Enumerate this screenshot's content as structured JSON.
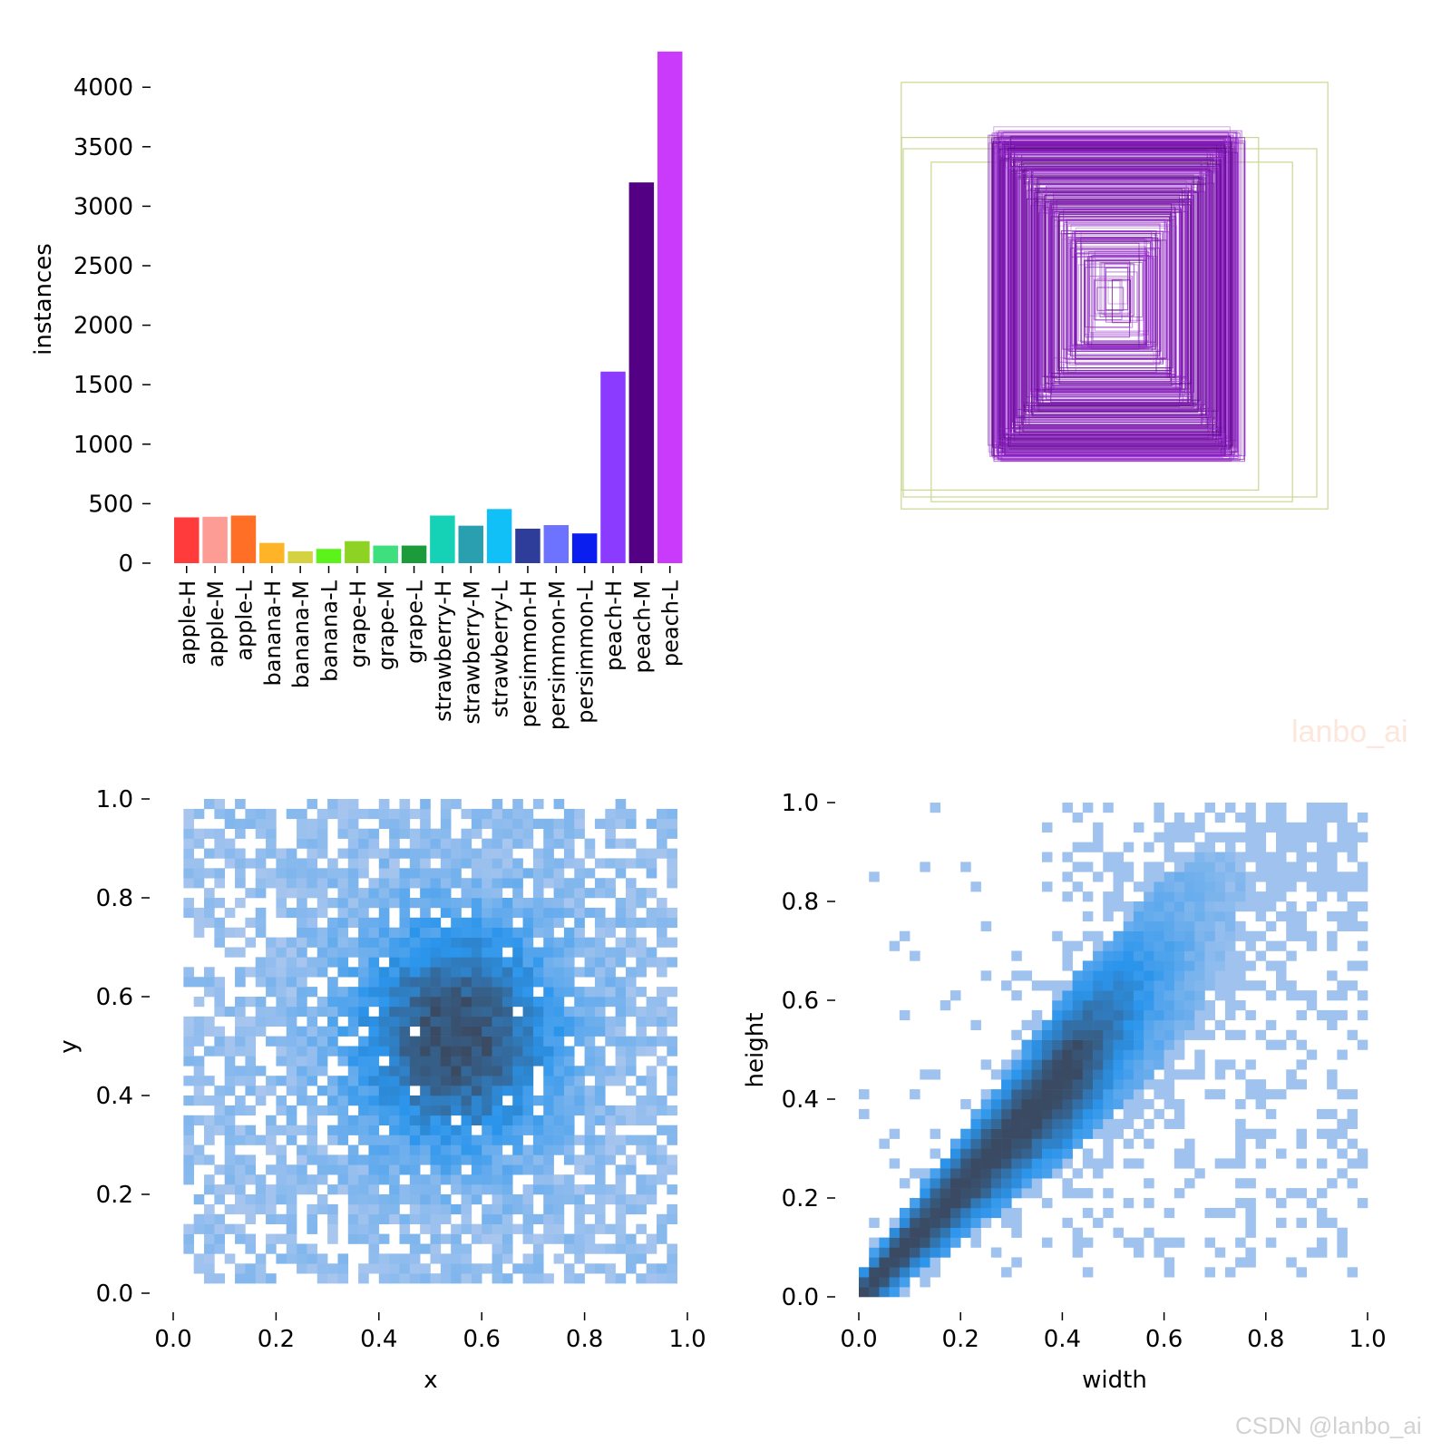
{
  "colors": {
    "axis": "#000000",
    "heat_light": "#a9c6ee",
    "heat_mid": "#2b95ec",
    "heat_dark": "#3a4a62",
    "box_outline_green": "#c8d890",
    "box_outline_purple": "#9a2cc8"
  },
  "watermarks": {
    "faint": "lanbo_ai",
    "footer": "CSDN @lanbo_ai"
  },
  "chart_data": [
    {
      "type": "bar",
      "title": "",
      "xlabel": "",
      "ylabel": "instances",
      "ylim": [
        0,
        4300
      ],
      "yticks": [
        0,
        500,
        1000,
        1500,
        2000,
        2500,
        3000,
        3500,
        4000
      ],
      "categories": [
        "apple-H",
        "apple-M",
        "apple-L",
        "banana-H",
        "banana-M",
        "banana-L",
        "grape-H",
        "grape-M",
        "grape-L",
        "strawberry-H",
        "strawberry-M",
        "strawberry-L",
        "persimmon-H",
        "persimmon-M",
        "persimmon-L",
        "peach-H",
        "peach-M",
        "peach-L"
      ],
      "values": [
        385,
        390,
        400,
        170,
        100,
        120,
        185,
        148,
        148,
        400,
        315,
        455,
        290,
        320,
        250,
        1610,
        3200,
        4300
      ],
      "colors": [
        "#ff3b3b",
        "#fd9c95",
        "#ff6f26",
        "#ffb326",
        "#d4d241",
        "#5cf31a",
        "#8ed323",
        "#3edf7e",
        "#1c9b3a",
        "#15d2b6",
        "#2a9fb0",
        "#12c0f8",
        "#2e3d9a",
        "#6d73ff",
        "#0a1ef0",
        "#8a3bff",
        "#540084",
        "#ca3afb"
      ]
    },
    {
      "type": "box-overlay",
      "title": "",
      "xlim": [
        0,
        1000
      ],
      "ylim": [
        0,
        1000
      ],
      "center": [
        500,
        500
      ],
      "large_boxes_wh": [
        [
          980,
          980
        ],
        [
          950,
          800
        ],
        [
          820,
          810
        ],
        [
          830,
          780
        ]
      ],
      "max_fruit_box_wh": [
        580,
        720
      ]
    },
    {
      "type": "heatmap",
      "title": "",
      "xlabel": "x",
      "ylabel": "y",
      "xlim": [
        0,
        1
      ],
      "ylim": [
        0,
        1
      ],
      "xticks": [
        "0.0",
        "0.2",
        "0.4",
        "0.6",
        "0.8",
        "1.0"
      ],
      "yticks": [
        "0.0",
        "0.2",
        "0.4",
        "0.6",
        "0.8",
        "1.0"
      ],
      "bins": 50,
      "data_range": [
        0.0,
        1.0
      ],
      "dense_center": [
        0.55,
        0.52
      ]
    },
    {
      "type": "heatmap",
      "title": "",
      "xlabel": "width",
      "ylabel": "height",
      "xlim": [
        0,
        1
      ],
      "ylim": [
        0,
        1
      ],
      "xticks": [
        "0.0",
        "0.2",
        "0.4",
        "0.6",
        "0.8",
        "1.0"
      ],
      "yticks": [
        "0.0",
        "0.2",
        "0.4",
        "0.6",
        "0.8",
        "1.0"
      ],
      "bins": 50,
      "trend": "height ≈ 1.1 × width",
      "dense_range": [
        0.02,
        0.4
      ]
    }
  ]
}
